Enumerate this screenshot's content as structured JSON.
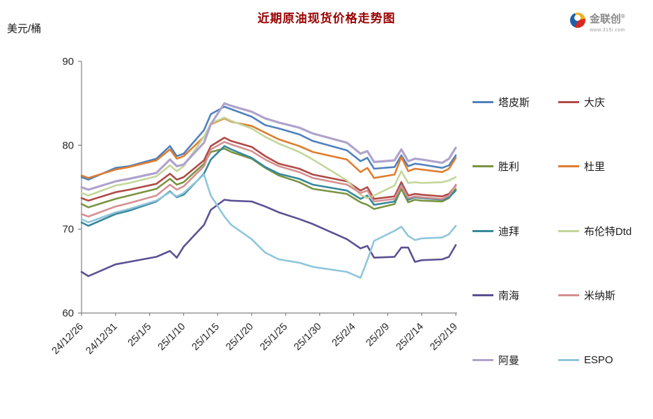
{
  "page": {
    "title": "近期原油现货价格走势图"
  },
  "logo": {
    "name": "金联创",
    "reg": "®",
    "url": "www.315i.com"
  },
  "chart_data": {
    "type": "line",
    "title": "近期原油现货价格走势图",
    "unit": "美元/桶",
    "xlabel": "",
    "ylabel": "美元/桶",
    "ylim": [
      60,
      90
    ],
    "yticks": [
      60,
      70,
      80,
      90
    ],
    "grid": false,
    "legend_position": "right",
    "x_tick_labels": [
      "24/12/26",
      "24/12/31",
      "25/1/5",
      "25/1/10",
      "25/1/15",
      "25/1/20",
      "25/1/25",
      "25/1/30",
      "25/2/4",
      "25/2/9",
      "25/2/14",
      "25/2/19"
    ],
    "x_tick_day_offsets": [
      0,
      5,
      10,
      15,
      20,
      25,
      30,
      35,
      40,
      45,
      50,
      55
    ],
    "x_max_day": 55,
    "sample_dates": [
      "24/12/26",
      "24/12/27",
      "24/12/31",
      "25/1/2",
      "25/1/6",
      "25/1/8",
      "25/1/9",
      "25/1/10",
      "25/1/13",
      "25/1/14",
      "25/1/16",
      "25/1/17",
      "25/1/20",
      "25/1/22",
      "25/1/24",
      "25/1/27",
      "25/1/29",
      "25/2/3",
      "25/2/5",
      "25/2/6",
      "25/2/7",
      "25/2/10",
      "25/2/11",
      "25/2/12",
      "25/2/13",
      "25/2/14",
      "25/2/17",
      "25/2/18",
      "25/2/19"
    ],
    "sample_day_offsets": [
      0,
      1,
      5,
      7,
      11,
      13,
      14,
      15,
      18,
      19,
      21,
      22,
      25,
      27,
      29,
      32,
      34,
      39,
      41,
      42,
      43,
      46,
      47,
      48,
      49,
      50,
      53,
      54,
      55
    ],
    "series": [
      {
        "id": "tapis",
        "name": "塔皮斯",
        "color": "#4F81BD",
        "width": 2.6,
        "values": [
          76.2,
          75.9,
          77.3,
          77.5,
          78.4,
          79.9,
          78.7,
          79.0,
          81.8,
          83.7,
          84.6,
          84.3,
          83.4,
          82.4,
          82.0,
          81.3,
          80.5,
          79.4,
          78.1,
          78.5,
          77.2,
          77.4,
          78.8,
          77.5,
          77.8,
          77.7,
          77.3,
          77.6,
          78.8
        ]
      },
      {
        "id": "daqing",
        "name": "大庆",
        "color": "#B04A47",
        "width": 2.6,
        "values": [
          73.7,
          73.4,
          74.4,
          74.7,
          75.4,
          76.6,
          75.9,
          76.2,
          78.2,
          79.9,
          80.9,
          80.5,
          79.8,
          78.7,
          77.8,
          77.2,
          76.5,
          75.7,
          74.6,
          75.0,
          73.6,
          73.9,
          75.6,
          74.0,
          74.2,
          74.1,
          73.9,
          74.2,
          75.2
        ]
      },
      {
        "id": "shengli",
        "name": "胜利",
        "color": "#799440",
        "width": 2.6,
        "values": [
          73.0,
          72.6,
          73.6,
          74.0,
          74.8,
          76.0,
          75.3,
          75.6,
          77.8,
          79.2,
          79.6,
          79.2,
          78.4,
          77.3,
          76.4,
          75.6,
          74.8,
          74.2,
          73.2,
          72.9,
          72.4,
          73.0,
          74.8,
          73.2,
          73.5,
          73.4,
          73.3,
          73.7,
          74.8
        ]
      },
      {
        "id": "duri",
        "name": "杜里",
        "color": "#DE7E30",
        "width": 2.6,
        "values": [
          76.4,
          76.1,
          77.1,
          77.4,
          78.2,
          79.5,
          78.4,
          78.7,
          81.0,
          82.5,
          83.2,
          82.8,
          82.3,
          81.5,
          80.7,
          79.9,
          79.2,
          78.3,
          76.8,
          77.3,
          76.1,
          76.5,
          78.6,
          76.9,
          77.2,
          77.1,
          76.8,
          77.2,
          78.5
        ]
      },
      {
        "id": "dubai",
        "name": "迪拜",
        "color": "#38879C",
        "width": 2.6,
        "values": [
          70.8,
          70.4,
          71.8,
          72.2,
          73.3,
          74.5,
          73.8,
          74.1,
          76.6,
          78.3,
          79.9,
          79.5,
          78.5,
          77.4,
          76.6,
          76.0,
          75.3,
          74.6,
          73.6,
          74.0,
          72.9,
          73.3,
          75.3,
          73.5,
          73.8,
          73.7,
          73.5,
          73.8,
          74.6
        ]
      },
      {
        "id": "brent-dtd",
        "name": "布伦特Dtd",
        "color": "#C3D69B",
        "width": 2.6,
        "values": [
          74.3,
          74.0,
          75.2,
          75.5,
          76.3,
          77.6,
          76.9,
          77.5,
          81.0,
          82.6,
          83.3,
          82.9,
          82.0,
          81.0,
          80.2,
          79.2,
          78.3,
          75.8,
          74.1,
          73.7,
          74.0,
          75.2,
          76.9,
          75.5,
          75.6,
          75.5,
          75.6,
          75.8,
          76.2
        ]
      },
      {
        "id": "nanhai",
        "name": "南海",
        "color": "#5C5093",
        "width": 2.6,
        "values": [
          64.9,
          64.4,
          65.8,
          66.1,
          66.7,
          67.4,
          66.6,
          67.9,
          70.5,
          72.3,
          73.5,
          73.4,
          73.3,
          72.7,
          72.0,
          71.2,
          70.6,
          68.8,
          67.7,
          68.0,
          66.6,
          66.7,
          67.8,
          67.8,
          66.1,
          66.3,
          66.4,
          66.7,
          68.1
        ]
      },
      {
        "id": "minas",
        "name": "米纳斯",
        "color": "#D59091",
        "width": 2.6,
        "values": [
          71.8,
          71.5,
          72.7,
          73.1,
          74.0,
          75.3,
          74.7,
          75.1,
          77.5,
          79.5,
          80.4,
          80.1,
          79.3,
          78.3,
          77.5,
          76.8,
          76.1,
          75.3,
          74.3,
          74.6,
          73.3,
          73.6,
          75.2,
          73.7,
          73.9,
          73.8,
          73.6,
          74.0,
          75.3
        ]
      },
      {
        "id": "oman",
        "name": "阿曼",
        "color": "#AFA3CC",
        "width": 3.2,
        "values": [
          75.0,
          74.7,
          75.7,
          76.0,
          76.7,
          78.3,
          77.5,
          77.7,
          80.3,
          82.5,
          85.0,
          84.7,
          84.0,
          83.2,
          82.7,
          82.1,
          81.4,
          80.3,
          79.0,
          79.3,
          78.0,
          78.2,
          79.5,
          78.1,
          78.4,
          78.3,
          77.9,
          78.4,
          79.7
        ]
      },
      {
        "id": "espo",
        "name": "ESPO",
        "color": "#8FC6DB",
        "width": 2.6,
        "values": [
          71.2,
          70.8,
          72.0,
          72.4,
          73.4,
          74.4,
          73.9,
          74.3,
          76.5,
          74.0,
          71.5,
          70.5,
          68.8,
          67.2,
          66.4,
          66.0,
          65.5,
          64.9,
          64.2,
          66.3,
          68.6,
          69.8,
          70.3,
          69.2,
          68.7,
          68.9,
          69.0,
          69.4,
          70.4
        ]
      }
    ]
  }
}
